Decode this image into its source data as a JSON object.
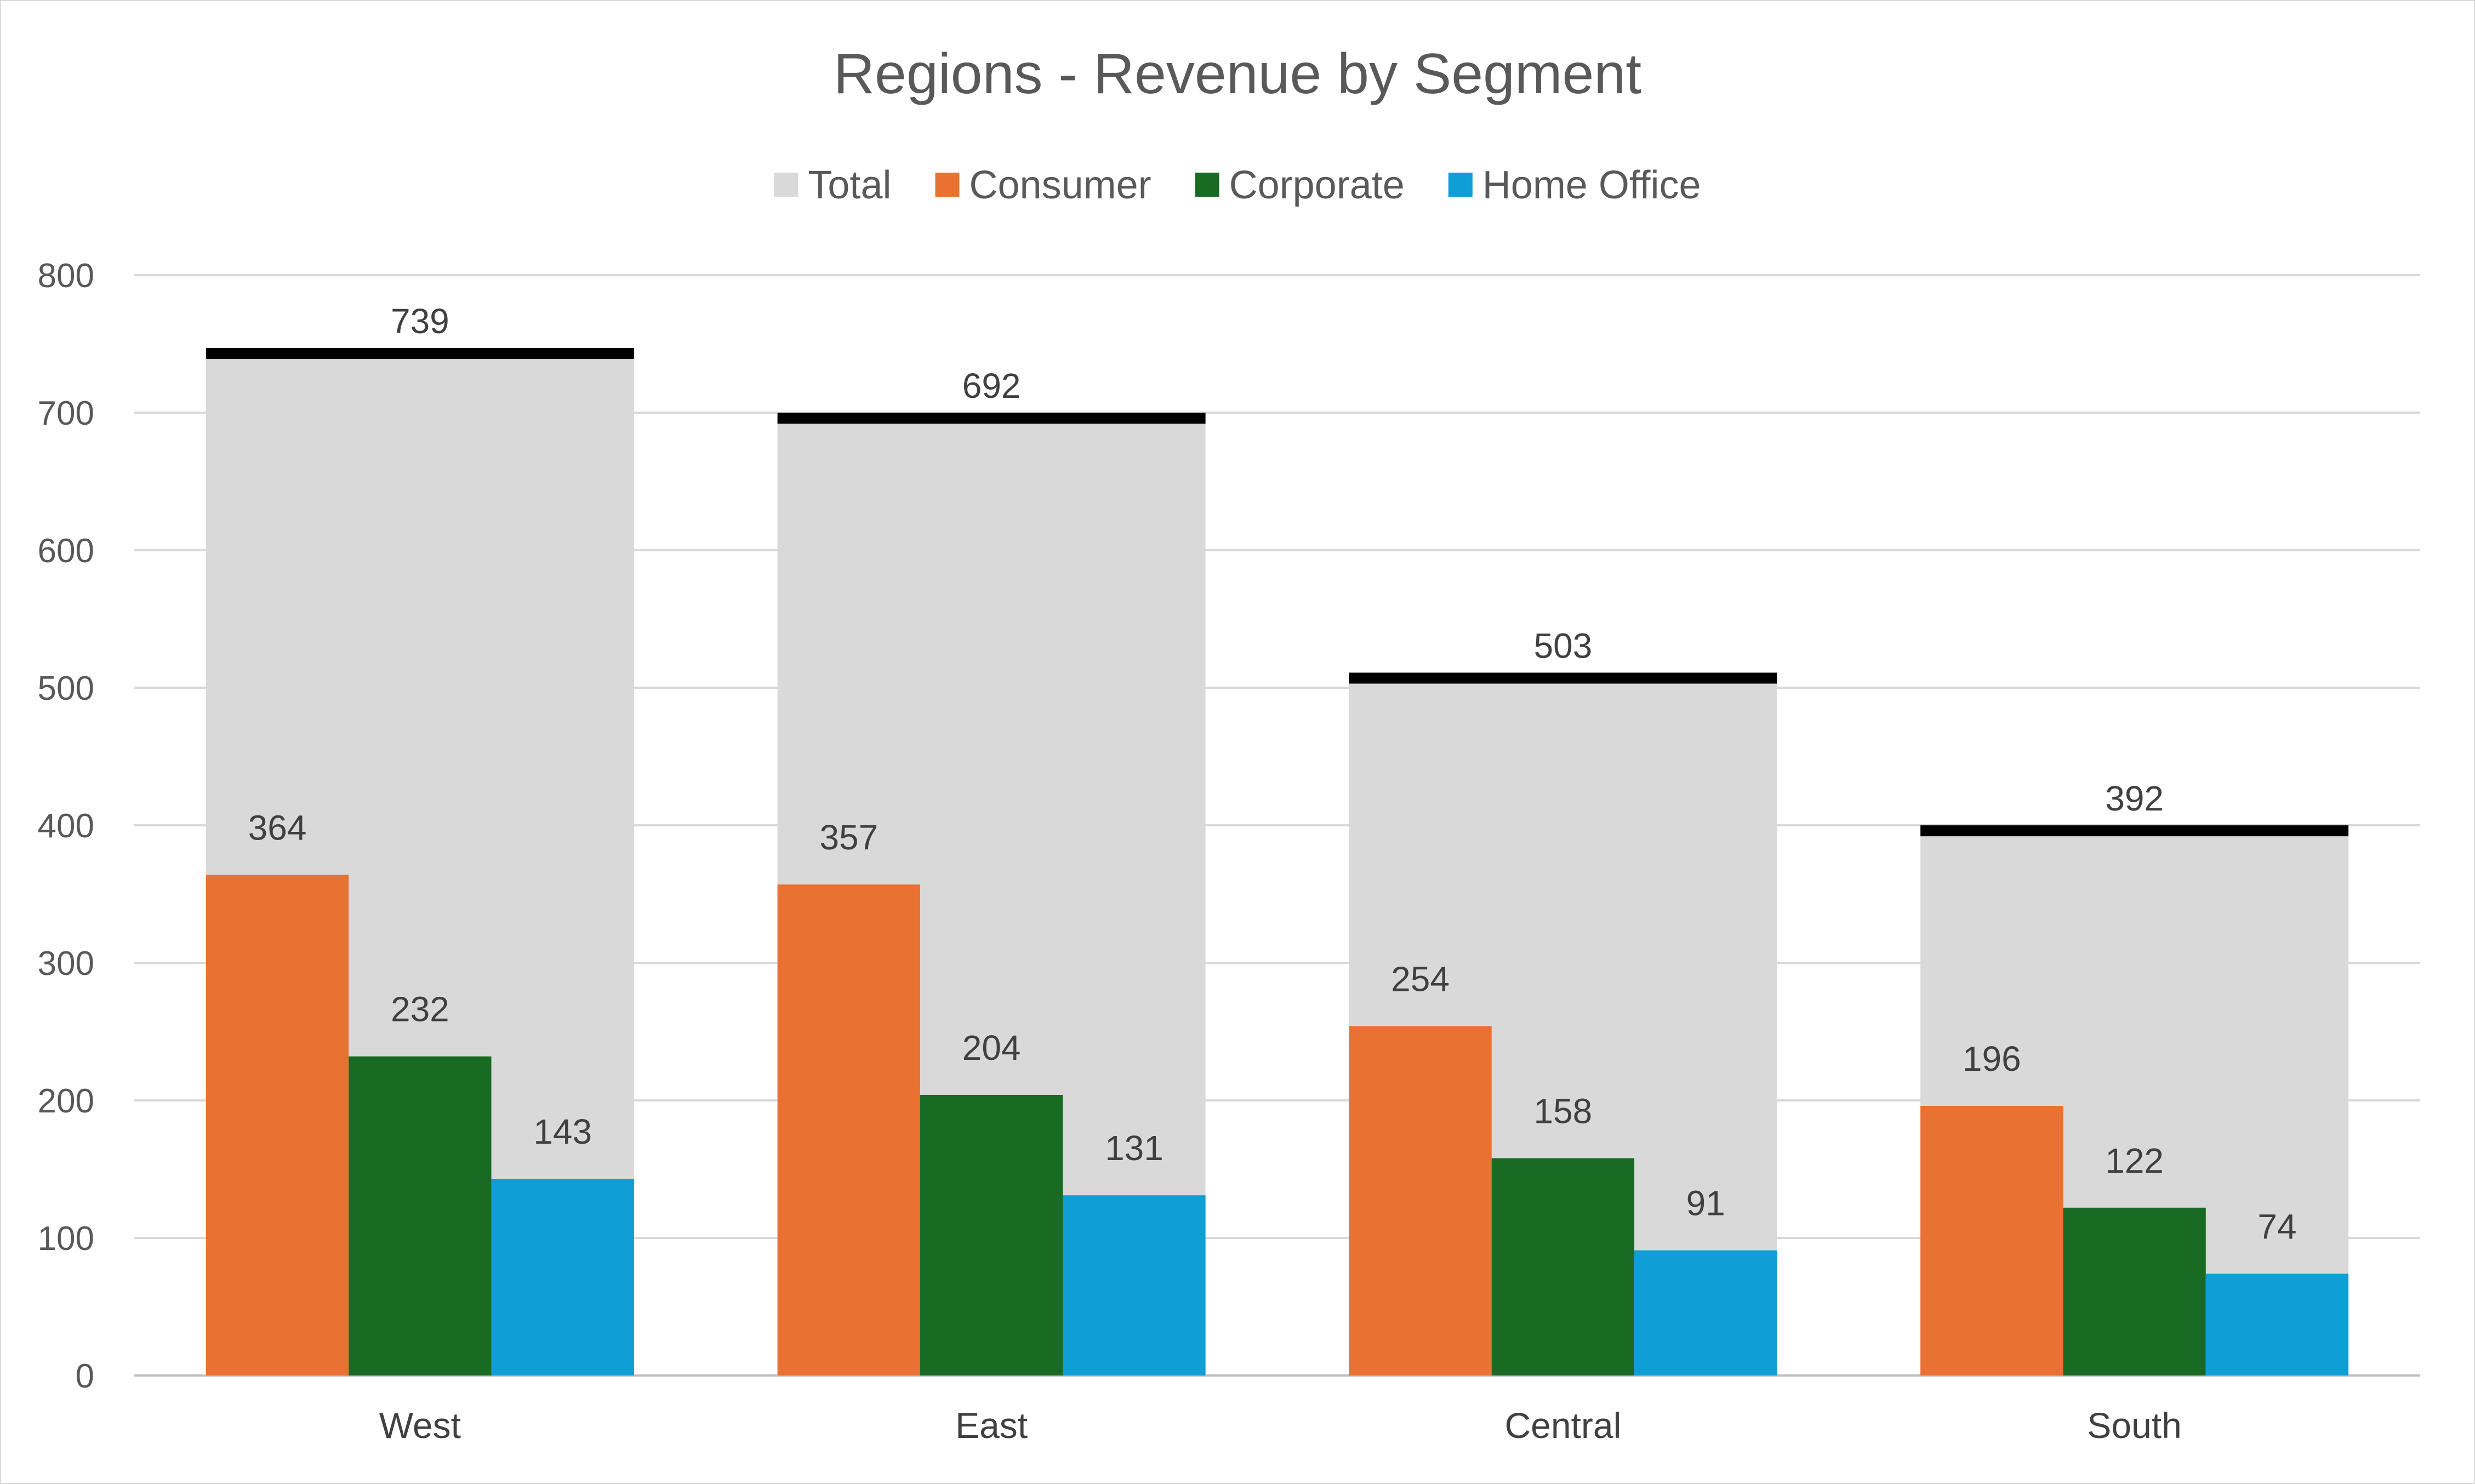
{
  "chart_data": {
    "type": "bar",
    "title": "Regions - Revenue by Segment",
    "categories": [
      "West",
      "East",
      "Central",
      "South"
    ],
    "ylim": [
      0,
      800
    ],
    "yticks": [
      0,
      100,
      200,
      300,
      400,
      500,
      600,
      700,
      800
    ],
    "grid": true,
    "legend_position": "top",
    "total_series": {
      "name": "Total",
      "color": "#d9d9d9",
      "values": [
        739,
        692,
        503,
        392
      ]
    },
    "series": [
      {
        "name": "Consumer",
        "color": "#e97132",
        "values": [
          364,
          357,
          254,
          196
        ]
      },
      {
        "name": "Corporate",
        "color": "#196b24",
        "values": [
          232,
          204,
          158,
          122
        ]
      },
      {
        "name": "Home Office",
        "color": "#0f9ed5",
        "values": [
          143,
          131,
          91,
          74
        ]
      }
    ]
  }
}
